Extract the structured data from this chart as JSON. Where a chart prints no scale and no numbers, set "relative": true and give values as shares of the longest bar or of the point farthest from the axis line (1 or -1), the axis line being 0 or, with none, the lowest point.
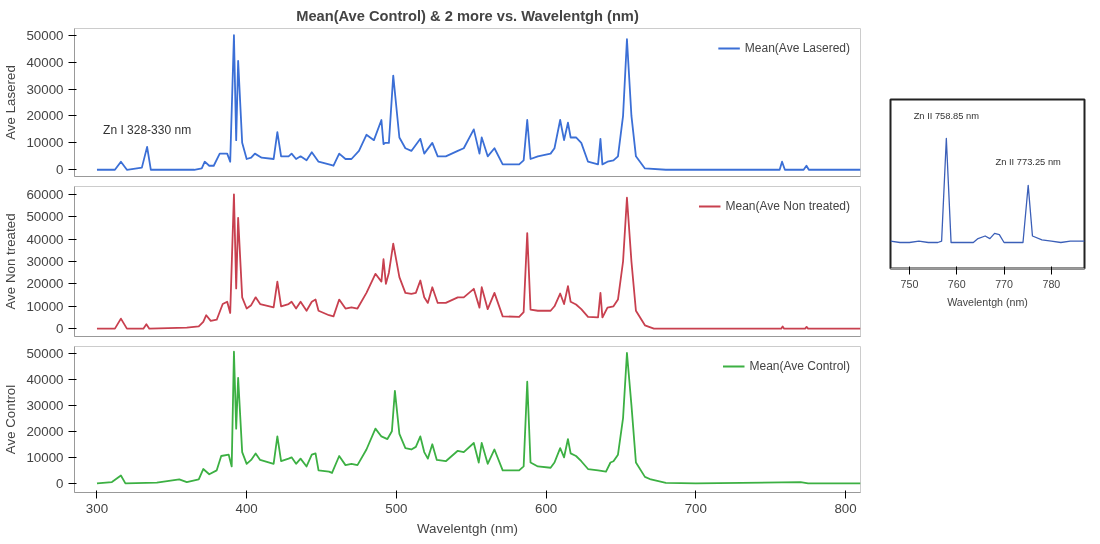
{
  "chart_data": [
    {
      "type": "line",
      "title": "Mean(Ave Control) & 2 more vs. Wavelentgh (nm)",
      "ylabel": "Ave Lasered",
      "legend": "top right",
      "tick_labels": "y",
      "xlim": [
        285,
        810
      ],
      "xticks": [
        300,
        400,
        500,
        600,
        700,
        800
      ],
      "ylim": [
        -2500,
        52500
      ],
      "yticks": [
        0,
        10000,
        20000,
        30000,
        40000,
        50000
      ],
      "annotations": [
        {
          "text": "Zn I 328-330 nm",
          "x": 333.5,
          "y": 8500
        }
      ],
      "x": [
        300,
        312,
        316,
        320,
        330,
        333.5,
        336,
        365,
        370,
        372,
        375,
        378,
        382,
        387,
        389,
        391.5,
        393,
        394.3,
        397,
        400,
        403,
        405.5,
        410,
        418,
        420.5,
        423,
        428,
        430,
        433,
        436,
        440,
        443.5,
        448,
        455,
        458,
        461.8,
        466,
        470,
        475,
        480,
        485,
        490,
        491.4,
        492.5,
        495,
        497.9,
        502,
        506,
        510,
        516,
        518.6,
        524,
        527.6,
        533,
        541,
        545,
        551.7,
        555.5,
        557,
        561,
        565.5,
        571,
        582,
        585,
        587.4,
        589.6,
        594.5,
        603,
        605.6,
        609.4,
        612,
        614.6,
        616.4,
        620,
        623.5,
        628,
        634.7,
        636.3,
        637.6,
        641,
        645,
        648,
        651.4,
        654,
        657,
        660,
        666,
        680,
        756,
        757.6,
        759.5,
        772,
        773.9,
        775.5,
        810
      ],
      "series": [
        {
          "name": "Mean(Ave Lasered)",
          "color": "#3b6fd6",
          "values": [
            0,
            0,
            3000,
            0,
            800,
            8500,
            0,
            0,
            500,
            3000,
            1500,
            1500,
            6000,
            6000,
            3000,
            50000,
            11000,
            40500,
            10000,
            4000,
            4500,
            6000,
            4500,
            4000,
            14000,
            5000,
            5000,
            6000,
            4000,
            5000,
            3500,
            6500,
            3000,
            2000,
            1500,
            6000,
            4000,
            4000,
            7000,
            13000,
            11000,
            18500,
            9500,
            10000,
            10000,
            35000,
            12000,
            8000,
            7000,
            11500,
            6000,
            10000,
            5000,
            5000,
            7000,
            8000,
            15000,
            6000,
            12000,
            5000,
            8000,
            2000,
            2000,
            3500,
            18500,
            4000,
            5000,
            6000,
            8000,
            18500,
            11000,
            17500,
            12000,
            12000,
            10000,
            3000,
            2000,
            11500,
            2000,
            3000,
            3500,
            5000,
            20000,
            48500,
            20000,
            5000,
            500,
            0,
            0,
            3000,
            0,
            0,
            1500,
            0,
            0
          ]
        }
      ]
    },
    {
      "type": "line",
      "ylabel": "Ave Non treated",
      "legend": "top right",
      "tick_labels": "y",
      "xlim": [
        285,
        810
      ],
      "xticks": [
        300,
        400,
        500,
        600,
        700,
        800
      ],
      "ylim": [
        -3500,
        63500
      ],
      "yticks": [
        0,
        10000,
        20000,
        30000,
        40000,
        50000,
        60000
      ],
      "x": [
        300,
        312,
        316,
        320,
        331,
        333,
        335,
        360,
        368,
        371,
        373,
        376,
        380,
        384,
        387,
        389,
        391.5,
        393,
        394.3,
        397,
        400,
        403,
        406,
        409,
        418,
        420.5,
        423,
        428,
        430,
        433,
        436,
        440,
        443.5,
        446,
        448,
        455,
        458,
        461.8,
        466,
        470,
        474,
        480,
        486,
        490,
        491.4,
        493,
        495,
        497.9,
        502,
        506,
        510,
        513,
        516,
        518.6,
        521,
        524,
        527.6,
        533,
        541,
        545,
        551.7,
        555.5,
        557,
        561,
        565.5,
        571,
        582,
        585,
        587.4,
        589.6,
        594.5,
        603,
        605.6,
        609.4,
        612,
        614.6,
        616.4,
        620,
        623.5,
        628,
        634.7,
        636.3,
        637.6,
        641,
        645,
        648,
        651.4,
        654,
        657,
        660,
        666,
        672,
        757,
        758,
        759,
        773,
        774,
        775,
        810
      ],
      "series": [
        {
          "name": "Mean(Ave Non treated)",
          "color": "#c8404f",
          "values": [
            0,
            0,
            4500,
            0,
            0,
            2000,
            0,
            500,
            1000,
            3000,
            6000,
            3500,
            4000,
            11000,
            12000,
            7000,
            60000,
            18000,
            49500,
            14000,
            9000,
            10500,
            14000,
            11000,
            9500,
            21000,
            10000,
            11000,
            12000,
            9000,
            12000,
            8000,
            12000,
            13000,
            8000,
            6000,
            5500,
            13000,
            9000,
            9500,
            9000,
            16000,
            24500,
            21000,
            31000,
            20000,
            25000,
            38000,
            23000,
            16000,
            15500,
            16000,
            21500,
            14000,
            11500,
            18500,
            11500,
            11500,
            14000,
            14000,
            17800,
            9400,
            18500,
            8700,
            16000,
            5500,
            5300,
            7400,
            42700,
            8500,
            8000,
            8000,
            10000,
            15700,
            11000,
            19000,
            12000,
            10800,
            8700,
            5300,
            5000,
            16000,
            5000,
            9400,
            10000,
            13000,
            30000,
            58500,
            30000,
            8000,
            1500,
            0,
            0,
            1000,
            0,
            0,
            800,
            0,
            0
          ]
        }
      ]
    },
    {
      "type": "line",
      "xlabel": "Wavelentgh (nm)",
      "ylabel": "Ave Control",
      "legend": "top right",
      "xlim": [
        285,
        810
      ],
      "xticks": [
        300,
        400,
        500,
        600,
        700,
        800
      ],
      "ylim": [
        -3500,
        52500
      ],
      "yticks": [
        0,
        10000,
        20000,
        30000,
        40000,
        50000
      ],
      "x": [
        300,
        310,
        316,
        319,
        340,
        355,
        360,
        368,
        371,
        375,
        380,
        383,
        388,
        390,
        391.5,
        393,
        394.3,
        397,
        400,
        403,
        406,
        409,
        418,
        420.5,
        423,
        428,
        430,
        433,
        436,
        440,
        443.5,
        446,
        448,
        455,
        457,
        461.8,
        466,
        470,
        474,
        480,
        486,
        490,
        494,
        497,
        499,
        502,
        506,
        510,
        513,
        516,
        518.6,
        521,
        524,
        527,
        533,
        541,
        545,
        551.7,
        555,
        557,
        561,
        565.5,
        571,
        582,
        585,
        587.4,
        589.6,
        594.5,
        603,
        605.6,
        609.4,
        612,
        614.6,
        616.4,
        620,
        623.5,
        628,
        634.7,
        640,
        643,
        645,
        648,
        651.4,
        654,
        657,
        660,
        666,
        670,
        680,
        700,
        770,
        775,
        810
      ],
      "series": [
        {
          "name": "Mean(Ave Control)",
          "color": "#3cb043",
          "values": [
            0,
            500,
            3000,
            0,
            300,
            1500,
            500,
            1500,
            5500,
            3500,
            5000,
            10500,
            11000,
            6500,
            50500,
            21000,
            40500,
            12000,
            7500,
            9000,
            11500,
            9000,
            7500,
            18000,
            8500,
            9500,
            10000,
            7500,
            9500,
            6500,
            11000,
            11500,
            5000,
            4500,
            4000,
            10500,
            7000,
            7500,
            7000,
            13000,
            21000,
            18000,
            17000,
            20000,
            35500,
            19000,
            13500,
            13000,
            14000,
            18000,
            12000,
            9500,
            15000,
            9000,
            8500,
            12500,
            12000,
            15500,
            8000,
            15500,
            7500,
            13000,
            5000,
            5000,
            6500,
            39000,
            8000,
            6500,
            6000,
            8000,
            13500,
            10000,
            17000,
            11500,
            10500,
            8500,
            5500,
            5000,
            4500,
            8000,
            8500,
            11000,
            25000,
            50000,
            30000,
            8000,
            2500,
            1500,
            200,
            0,
            500,
            0,
            0
          ]
        }
      ]
    },
    {
      "type": "line",
      "relative": true,
      "xlabel": "Wavelentgh (nm)",
      "tick_labels": "x",
      "xlim": [
        746,
        787
      ],
      "xticks": [
        750,
        760,
        770,
        780
      ],
      "annotations": [
        {
          "text": "Zn II 758.85 nm",
          "x": 757.8,
          "y": 1
        },
        {
          "text": "Zn II 773.25 nm",
          "x": 775.1,
          "y": 0.64
        }
      ],
      "x": [
        746,
        748,
        750,
        752,
        754,
        756,
        756.8,
        757.8,
        758.8,
        762,
        763.5,
        764.5,
        766,
        767,
        768,
        769,
        770,
        774,
        775.1,
        776,
        778,
        780,
        782,
        784,
        787
      ],
      "series": [
        {
          "color": "#3b5fb8",
          "values": [
            0.21,
            0.2,
            0.2,
            0.21,
            0.2,
            0.2,
            0.21,
            1,
            0.2,
            0.2,
            0.2,
            0.23,
            0.25,
            0.23,
            0.27,
            0.26,
            0.2,
            0.2,
            0.64,
            0.25,
            0.22,
            0.21,
            0.2,
            0.21,
            0.21
          ]
        }
      ]
    }
  ]
}
